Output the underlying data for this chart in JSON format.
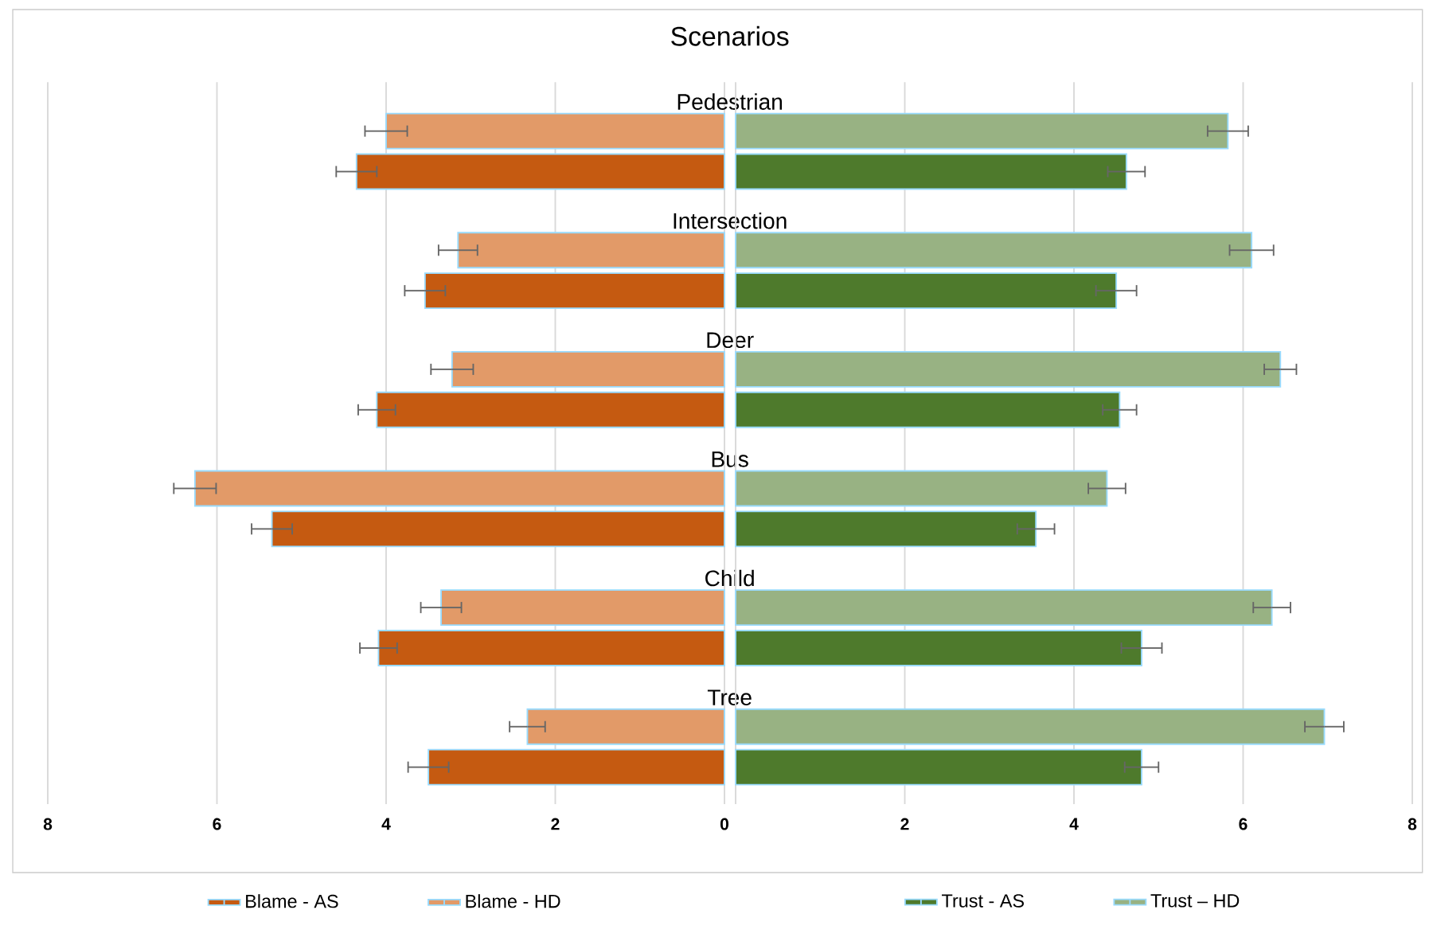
{
  "chart_data": [
    {
      "type": "bar",
      "orientation": "horizontal",
      "title": "Scenarios",
      "categories": [
        "Pedestrian",
        "Intersection",
        "Deer",
        "Bus",
        "Child",
        "Tree"
      ],
      "series": [
        {
          "name": "Blame - AS",
          "color": "#c55a11",
          "values": [
            4.35,
            3.54,
            4.11,
            5.35,
            4.09,
            3.5
          ],
          "errors": [
            0.24,
            0.24,
            0.22,
            0.24,
            0.22,
            0.24
          ]
        },
        {
          "name": "Blame - HD",
          "color": "#e29a68",
          "values": [
            4.0,
            3.15,
            3.22,
            6.26,
            3.35,
            2.33
          ],
          "errors": [
            0.25,
            0.23,
            0.25,
            0.25,
            0.24,
            0.21
          ]
        }
      ],
      "xlim": [
        8,
        0
      ],
      "xticks": [
        8,
        6,
        4,
        2,
        0
      ],
      "grid": "x",
      "legend": "bottom"
    },
    {
      "type": "bar",
      "orientation": "horizontal",
      "categories": [
        null,
        null,
        null,
        null,
        null,
        null
      ],
      "series": [
        {
          "name": "Trust - AS",
          "color": "#4e7a2c",
          "values": [
            4.62,
            4.5,
            4.54,
            3.55,
            4.8,
            4.8
          ],
          "errors": [
            0.22,
            0.24,
            0.2,
            0.22,
            0.24,
            0.2
          ]
        },
        {
          "name": "Trust – HD",
          "color": "#98b283",
          "values": [
            5.82,
            6.1,
            6.44,
            4.39,
            6.34,
            6.96
          ],
          "errors": [
            0.24,
            0.26,
            0.19,
            0.22,
            0.22,
            0.23
          ]
        }
      ],
      "xlim": [
        0,
        8
      ],
      "xticks": [
        {
          "value": 0,
          "label": null
        },
        2,
        4,
        6,
        8
      ],
      "grid": "x",
      "legend": "bottom"
    }
  ]
}
